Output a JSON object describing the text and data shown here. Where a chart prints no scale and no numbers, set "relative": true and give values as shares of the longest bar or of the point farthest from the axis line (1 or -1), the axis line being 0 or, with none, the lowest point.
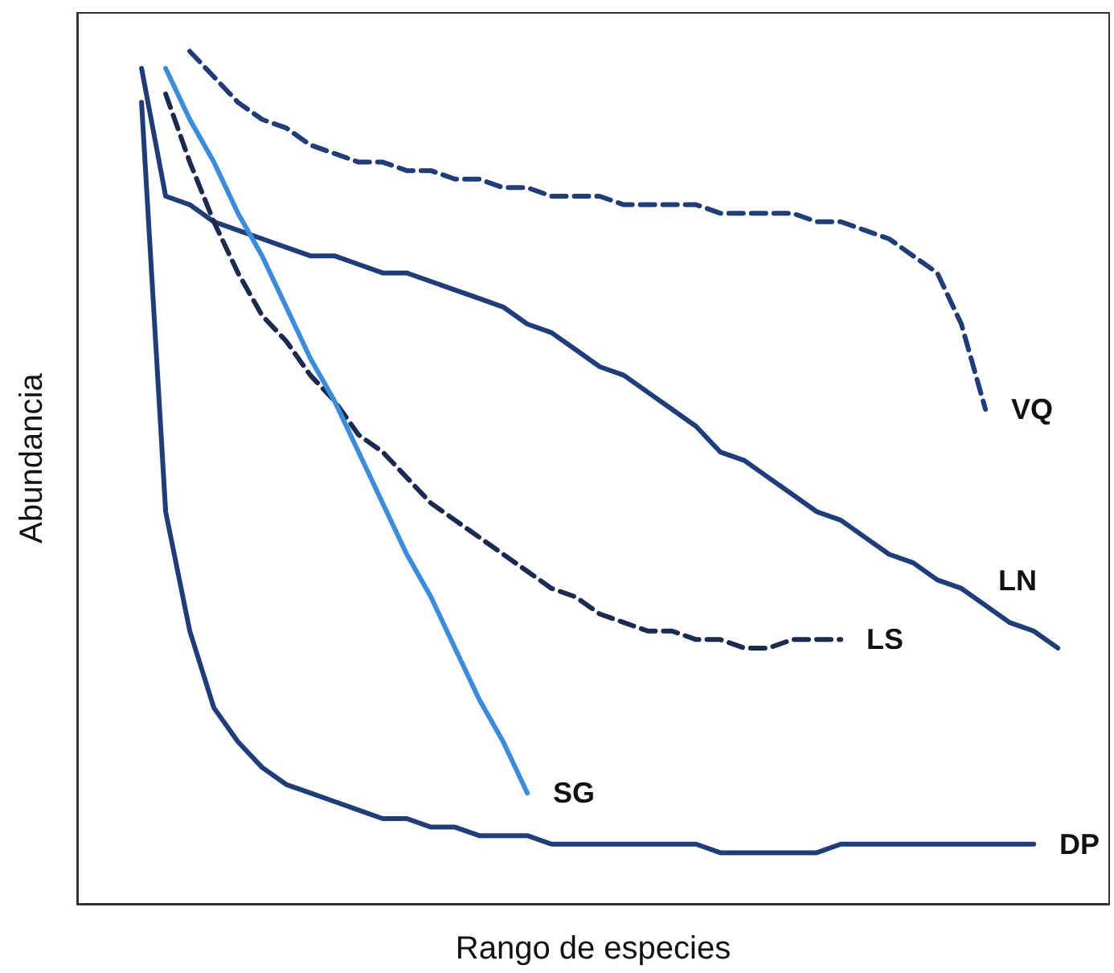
{
  "chart_data": {
    "type": "line",
    "relative": true,
    "xlabel": "Rango de especies",
    "ylabel": "Abundancia",
    "marker": "none",
    "grid": false,
    "legend": false,
    "categories": [
      null,
      null,
      null,
      null,
      null,
      null,
      null,
      null,
      null,
      null,
      null,
      null,
      null,
      null,
      null,
      null,
      null,
      null,
      null,
      null,
      null,
      null,
      null,
      null,
      null,
      null,
      null,
      null,
      null,
      null,
      null,
      null,
      null,
      null,
      null,
      null,
      null,
      null,
      null
    ],
    "series": [
      {
        "name": "VQ",
        "color": "#1f3d7a",
        "line_style": "dashed",
        "values": [
          null,
          null,
          1.0,
          0.97,
          0.94,
          0.92,
          0.91,
          0.89,
          0.88,
          0.87,
          0.87,
          0.86,
          0.86,
          0.85,
          0.85,
          0.84,
          0.84,
          0.83,
          0.83,
          0.83,
          0.82,
          0.82,
          0.82,
          0.82,
          0.81,
          0.81,
          0.81,
          0.81,
          0.8,
          0.8,
          0.79,
          0.78,
          0.76,
          0.74,
          0.68,
          0.58,
          null,
          null,
          null
        ]
      },
      {
        "name": "LN",
        "color": "#1f3d7a",
        "line_style": "solid",
        "values": [
          0.98,
          0.83,
          0.82,
          0.8,
          0.79,
          0.78,
          0.77,
          0.76,
          0.76,
          0.75,
          0.74,
          0.74,
          0.73,
          0.72,
          0.71,
          0.7,
          0.68,
          0.67,
          0.65,
          0.63,
          0.62,
          0.6,
          0.58,
          0.56,
          0.53,
          0.52,
          0.5,
          0.48,
          0.46,
          0.45,
          0.43,
          0.41,
          0.4,
          0.38,
          0.37,
          0.35,
          0.33,
          0.32,
          0.3
        ]
      },
      {
        "name": "LS",
        "color": "#1a2a50",
        "line_style": "dashed",
        "values": [
          null,
          0.95,
          0.87,
          0.8,
          0.74,
          0.69,
          0.66,
          0.62,
          0.59,
          0.55,
          0.53,
          0.5,
          0.47,
          0.45,
          0.43,
          0.41,
          0.39,
          0.37,
          0.36,
          0.34,
          0.33,
          0.32,
          0.32,
          0.31,
          0.31,
          0.3,
          0.3,
          0.31,
          0.31,
          0.31,
          null,
          null,
          null,
          null,
          null,
          null,
          null,
          null,
          null
        ]
      },
      {
        "name": "SG",
        "color": "#3a8ddc",
        "line_style": "solid",
        "values": [
          null,
          0.98,
          0.92,
          0.87,
          0.81,
          0.76,
          0.7,
          0.64,
          0.59,
          0.53,
          0.47,
          0.41,
          0.36,
          0.3,
          0.24,
          0.19,
          0.13,
          null,
          null,
          null,
          null,
          null,
          null,
          null,
          null,
          null,
          null,
          null,
          null,
          null,
          null,
          null,
          null,
          null,
          null,
          null,
          null,
          null,
          null
        ]
      },
      {
        "name": "DP",
        "color": "#1f3d7a",
        "line_style": "solid",
        "values": [
          0.94,
          0.46,
          0.32,
          0.23,
          0.19,
          0.16,
          0.14,
          0.13,
          0.12,
          0.11,
          0.1,
          0.1,
          0.09,
          0.09,
          0.08,
          0.08,
          0.08,
          0.07,
          0.07,
          0.07,
          0.07,
          0.07,
          0.07,
          0.07,
          0.06,
          0.06,
          0.06,
          0.06,
          0.06,
          0.07,
          0.07,
          0.07,
          0.07,
          0.07,
          0.07,
          0.07,
          0.07,
          0.07,
          null
        ]
      }
    ]
  }
}
